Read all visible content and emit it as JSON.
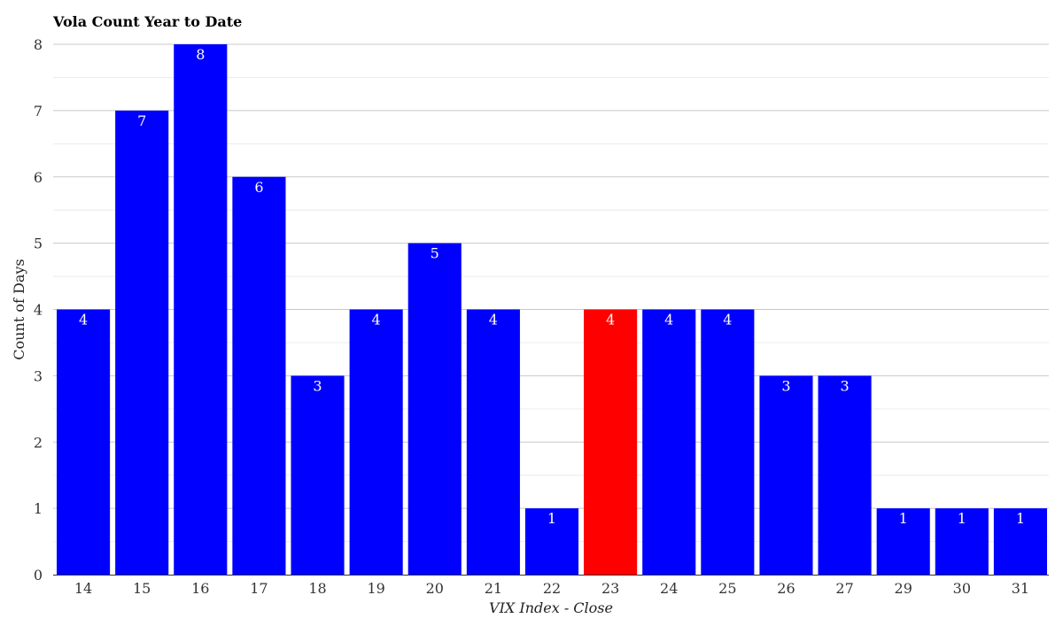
{
  "chart_data": {
    "type": "bar",
    "title": "Vola Count Year to Date",
    "xlabel": "VIX Index - Close",
    "ylabel": "Count of Days",
    "categories": [
      "14",
      "15",
      "16",
      "17",
      "18",
      "19",
      "20",
      "21",
      "22",
      "23",
      "24",
      "25",
      "26",
      "27",
      "29",
      "30",
      "31"
    ],
    "values": [
      4,
      7,
      8,
      6,
      3,
      4,
      5,
      4,
      1,
      4,
      4,
      4,
      3,
      3,
      1,
      1,
      1
    ],
    "highlight_category": "23",
    "ylim": [
      0,
      8
    ],
    "yticks": [
      0,
      1,
      2,
      3,
      4,
      5,
      6,
      7,
      8
    ],
    "grid": true,
    "legend": "none",
    "colors": {
      "bar": "#0000ff",
      "highlight": "#ff0000",
      "grid_major": "#c8c8c8",
      "grid_minor": "#ececec"
    }
  }
}
